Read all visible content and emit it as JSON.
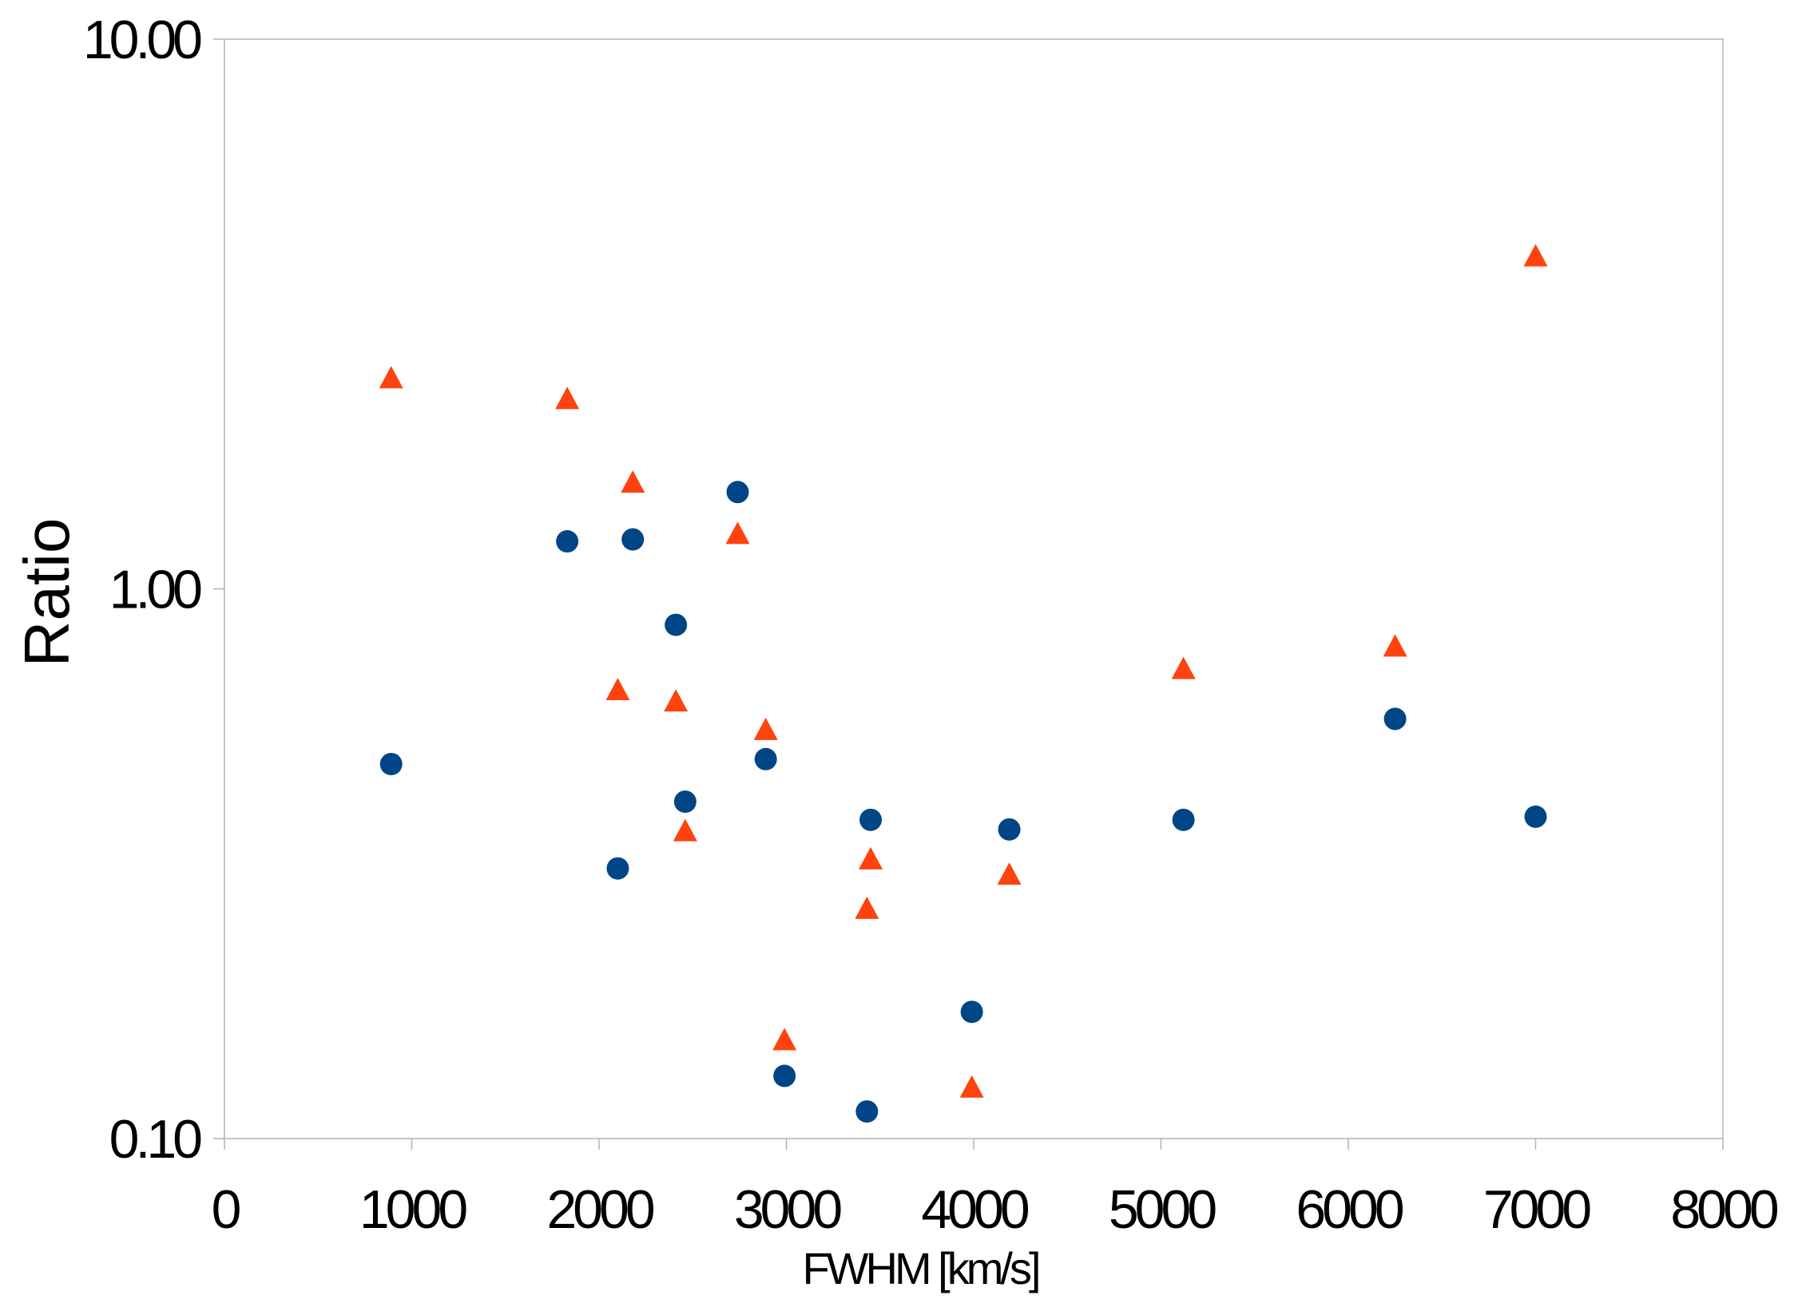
{
  "chart_data": {
    "type": "scatter",
    "title": "",
    "xlabel": "FWHM [km/s]",
    "ylabel": "Ratio",
    "xlim": [
      0,
      8000
    ],
    "ylim": [
      0.1,
      10
    ],
    "yscale": "log",
    "grid": false,
    "legend": "none",
    "x_ticks": [
      "0",
      "1000",
      "2000",
      "3000",
      "4000",
      "5000",
      "6000",
      "7000",
      "8000"
    ],
    "y_ticks": [
      "0.10",
      "1.00",
      "10.00"
    ],
    "series": [
      {
        "marker": "circle",
        "color": "#004586",
        "points": [
          {
            "x": 890,
            "y": 0.48
          },
          {
            "x": 1830,
            "y": 1.22
          },
          {
            "x": 2180,
            "y": 1.23
          },
          {
            "x": 2100,
            "y": 0.31
          },
          {
            "x": 2410,
            "y": 0.86
          },
          {
            "x": 2460,
            "y": 0.41
          },
          {
            "x": 2740,
            "y": 1.5
          },
          {
            "x": 2890,
            "y": 0.49
          },
          {
            "x": 2990,
            "y": 0.13
          },
          {
            "x": 3430,
            "y": 0.112
          },
          {
            "x": 3450,
            "y": 0.38
          },
          {
            "x": 3990,
            "y": 0.17
          },
          {
            "x": 4190,
            "y": 0.365
          },
          {
            "x": 5120,
            "y": 0.38
          },
          {
            "x": 6250,
            "y": 0.58
          },
          {
            "x": 7000,
            "y": 0.385
          }
        ]
      },
      {
        "marker": "triangle",
        "color": "#ff420e",
        "points": [
          {
            "x": 890,
            "y": 2.4
          },
          {
            "x": 1830,
            "y": 2.2
          },
          {
            "x": 2180,
            "y": 1.55
          },
          {
            "x": 2100,
            "y": 0.65
          },
          {
            "x": 2410,
            "y": 0.62
          },
          {
            "x": 2460,
            "y": 0.36
          },
          {
            "x": 2740,
            "y": 1.25
          },
          {
            "x": 2890,
            "y": 0.55
          },
          {
            "x": 2990,
            "y": 0.15
          },
          {
            "x": 3430,
            "y": 0.26
          },
          {
            "x": 3450,
            "y": 0.32
          },
          {
            "x": 3990,
            "y": 0.123
          },
          {
            "x": 4190,
            "y": 0.3
          },
          {
            "x": 5120,
            "y": 0.71
          },
          {
            "x": 6250,
            "y": 0.78
          },
          {
            "x": 7000,
            "y": 4.0
          }
        ]
      }
    ]
  }
}
